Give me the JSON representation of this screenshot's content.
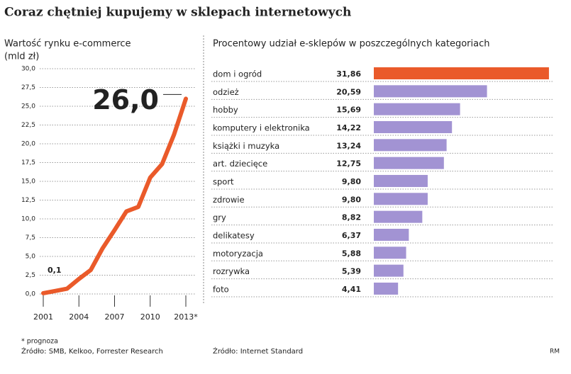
{
  "title": "Coraz chętniej kupujemy w sklepach internetowych",
  "credit": "RM",
  "chart_data": [
    {
      "type": "line",
      "y_label": "Wartość rynku e-commerce",
      "y_unit": "(mld zł)",
      "x": [
        2001,
        2002,
        2003,
        2004,
        2005,
        2006,
        2007,
        2008,
        2009,
        2010,
        2011,
        2012,
        2013
      ],
      "values": [
        0.1,
        0.4,
        0.7,
        2.0,
        3.2,
        6.1,
        8.5,
        11.0,
        11.6,
        15.5,
        17.3,
        21.2,
        26.0
      ],
      "value_labels": [
        "0,1",
        null,
        null,
        null,
        null,
        null,
        null,
        null,
        null,
        null,
        null,
        null,
        "26,0"
      ],
      "color": "#ea5a2a",
      "xlim": [
        2001,
        2013
      ],
      "xticks": [
        2001,
        2004,
        2007,
        2010,
        {
          "value": 2013,
          "label": "2013*"
        }
      ],
      "ylim": [
        0,
        30
      ],
      "yticks": [
        {
          "value": 0,
          "label": "0,0"
        },
        {
          "value": 2.5,
          "label": "2,5"
        },
        {
          "value": 5,
          "label": "5,0"
        },
        {
          "value": 7.5,
          "label": "7,5"
        },
        {
          "value": 10,
          "label": "10,0"
        },
        {
          "value": 12.5,
          "label": "12,5"
        },
        {
          "value": 15,
          "label": "15,0"
        },
        {
          "value": 17.5,
          "label": "17,5"
        },
        {
          "value": 20,
          "label": "20,0"
        },
        {
          "value": 22.5,
          "label": "22,5"
        },
        {
          "value": 25,
          "label": "25,0"
        },
        {
          "value": 27.5,
          "label": "27,5"
        },
        {
          "value": 30,
          "label": "30,0"
        }
      ],
      "grid": true,
      "footnote": "* prognoza",
      "source": "Źródło: SMB, Kelkoo, Forrester Research"
    },
    {
      "type": "hbar",
      "title": "Procentowy udział e-sklepów w poszczególnych kategoriach",
      "categories": [
        "dom i ogród",
        "odzież",
        "hobby",
        "komputery i elektronika",
        "książki i muzyka",
        "art. dziecięce",
        "sport",
        "zdrowie",
        "gry",
        "delikatesy",
        "motoryzacja",
        "rozrywka",
        "foto"
      ],
      "values": [
        31.86,
        20.59,
        15.69,
        14.22,
        13.24,
        12.75,
        9.8,
        9.8,
        8.82,
        6.37,
        5.88,
        5.39,
        4.41
      ],
      "value_labels": [
        "31,86",
        "20,59",
        "15,69",
        "14,22",
        "13,24",
        "12,75",
        "9,80",
        "9,80",
        "8,82",
        "6,37",
        "5,88",
        "5,39",
        "4,41"
      ],
      "colors": [
        "#ea5a2a",
        "#a293d3",
        "#a293d3",
        "#a293d3",
        "#a293d3",
        "#a293d3",
        "#a293d3",
        "#a293d3",
        "#a293d3",
        "#a293d3",
        "#a293d3",
        "#a293d3",
        "#a293d3"
      ],
      "xlim": [
        0,
        32
      ],
      "source": "Źródło: Internet Standard"
    }
  ]
}
